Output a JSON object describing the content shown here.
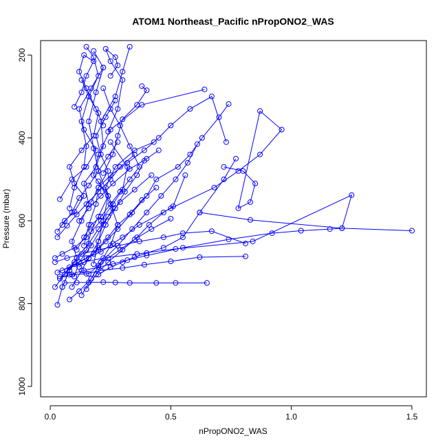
{
  "chart_data": {
    "type": "line",
    "title": "ATOM1 Northeast_Pacific nPropONO2_WAS",
    "xlabel": "nPropONO2_WAS",
    "ylabel": "Pressure (mbar)",
    "xlim": [
      -0.04,
      1.56
    ],
    "ylim": [
      1025,
      165
    ],
    "y_reversed": true,
    "x_ticks": [
      0.0,
      0.5,
      1.0,
      1.5
    ],
    "x_tick_labels": [
      "0.0",
      "0.5",
      "1.0",
      "1.5"
    ],
    "y_ticks": [
      200,
      400,
      600,
      800,
      1000
    ],
    "y_tick_labels": [
      "200",
      "400",
      "600",
      "800",
      "1000"
    ],
    "grid": false,
    "legend": "none",
    "marker": "open-circle",
    "color": "#0000ff",
    "series": [
      {
        "x": [
          0.03,
          0.05,
          0.08,
          0.11,
          0.09,
          0.13,
          0.16,
          0.14,
          0.19,
          0.22,
          0.21,
          0.27,
          0.3,
          0.33
        ],
        "y": [
          803,
          760,
          720,
          690,
          650,
          600,
          560,
          510,
          470,
          420,
          360,
          300,
          240,
          180
        ]
      },
      {
        "x": [
          0.02,
          0.06,
          0.1,
          0.15,
          0.17,
          0.2,
          0.24,
          0.18,
          0.2,
          0.25,
          0.38,
          0.64
        ],
        "y": [
          760,
          730,
          700,
          670,
          625,
          590,
          540,
          490,
          440,
          380,
          320,
          283
        ]
      },
      {
        "x": [
          0.04,
          0.07,
          0.12,
          0.18,
          0.23,
          0.28,
          0.34,
          0.4,
          0.44,
          0.53,
          0.58,
          0.63,
          0.7,
          0.74
        ],
        "y": [
          740,
          720,
          700,
          680,
          650,
          620,
          580,
          540,
          500,
          470,
          440,
          400,
          350,
          318
        ]
      },
      {
        "x": [
          0.05,
          0.1,
          0.15,
          0.21,
          0.26,
          0.3,
          0.37,
          0.5,
          0.68,
          0.78,
          0.87,
          0.96,
          0.87,
          0.78,
          0.83,
          0.85,
          0.8,
          0.72
        ],
        "y": [
          720,
          705,
          690,
          675,
          655,
          640,
          610,
          570,
          520,
          480,
          440,
          380,
          335,
          570,
          555,
          510,
          480,
          470
        ]
      },
      {
        "x": [
          0.08,
          0.14,
          0.2,
          0.26,
          0.32,
          0.4,
          0.55,
          0.74,
          0.92,
          1.04,
          1.16,
          1.21,
          1.5
        ],
        "y": [
          730,
          720,
          712,
          704,
          695,
          684,
          665,
          645,
          630,
          624,
          620,
          618,
          624
        ]
      },
      {
        "x": [
          0.03,
          0.08,
          0.14,
          0.22,
          0.36,
          0.52,
          0.84,
          1.25,
          1.21,
          0.83,
          0.62
        ],
        "y": [
          725,
          712,
          700,
          690,
          680,
          668,
          650,
          538,
          618,
          598,
          580
        ]
      },
      {
        "x": [
          0.02,
          0.07,
          0.13,
          0.2,
          0.28,
          0.37,
          0.47,
          0.55,
          0.67,
          0.81
        ],
        "y": [
          700,
          690,
          680,
          670,
          660,
          650,
          640,
          630,
          625,
          655
        ]
      },
      {
        "x": [
          0.04,
          0.09,
          0.15,
          0.21,
          0.3,
          0.39,
          0.5,
          0.62,
          0.81
        ],
        "y": [
          735,
          730,
          728,
          720,
          714,
          706,
          698,
          688,
          686
        ]
      },
      {
        "x": [
          0.06,
          0.11,
          0.16,
          0.22,
          0.27,
          0.33,
          0.44,
          0.52,
          0.65
        ],
        "y": [
          750,
          749,
          749,
          748,
          749,
          750,
          750,
          750,
          750
        ]
      },
      {
        "x": [
          0.03,
          0.06,
          0.1,
          0.14,
          0.1,
          0.08,
          0.13,
          0.18,
          0.2,
          0.16,
          0.13
        ],
        "y": [
          626,
          600,
          578,
          540,
          510,
          470,
          430,
          395,
          340,
          300,
          260
        ]
      },
      {
        "x": [
          0.04,
          0.09,
          0.15,
          0.19,
          0.14,
          0.12,
          0.17,
          0.22,
          0.18
        ],
        "y": [
          548,
          500,
          470,
          430,
          380,
          330,
          280,
          230,
          190
        ]
      },
      {
        "x": [
          0.08,
          0.12,
          0.17,
          0.21,
          0.25,
          0.28,
          0.25,
          0.2
        ],
        "y": [
          790,
          770,
          740,
          700,
          660,
          610,
          560,
          505
        ]
      },
      {
        "x": [
          0.13,
          0.17,
          0.21,
          0.28,
          0.34,
          0.4,
          0.46,
          0.52,
          0.57,
          0.61
        ],
        "y": [
          780,
          740,
          700,
          660,
          620,
          580,
          540,
          500,
          460,
          415
        ]
      },
      {
        "x": [
          0.05,
          0.08,
          0.11,
          0.16,
          0.2,
          0.24,
          0.29,
          0.35,
          0.42
        ],
        "y": [
          760,
          720,
          690,
          655,
          620,
          590,
          555,
          525,
          490
        ]
      },
      {
        "x": [
          0.1,
          0.12,
          0.17,
          0.22,
          0.26,
          0.23,
          0.27,
          0.35,
          0.43
        ],
        "y": [
          735,
          700,
          660,
          610,
          570,
          520,
          470,
          430,
          410
        ]
      },
      {
        "x": [
          0.15,
          0.19,
          0.24,
          0.3,
          0.36,
          0.41,
          0.47,
          0.51,
          0.56
        ],
        "y": [
          765,
          730,
          700,
          670,
          640,
          610,
          580,
          565,
          490
        ]
      },
      {
        "x": [
          0.02,
          0.05,
          0.1,
          0.15,
          0.21,
          0.26,
          0.3,
          0.32,
          0.25
        ],
        "y": [
          690,
          680,
          665,
          640,
          600,
          560,
          525,
          470,
          410
        ]
      },
      {
        "x": [
          0.12,
          0.16,
          0.2,
          0.24,
          0.28,
          0.33,
          0.38,
          0.44
        ],
        "y": [
          712,
          690,
          665,
          640,
          610,
          585,
          550,
          520
        ]
      },
      {
        "x": [
          0.03,
          0.07,
          0.11,
          0.15,
          0.2,
          0.25,
          0.29,
          0.35
        ],
        "y": [
          640,
          612,
          585,
          560,
          530,
          500,
          470,
          440
        ]
      },
      {
        "x": [
          0.09,
          0.13,
          0.16,
          0.2,
          0.23,
          0.27,
          0.31,
          0.36,
          0.39
        ],
        "y": [
          760,
          720,
          690,
          650,
          610,
          570,
          530,
          490,
          455
        ]
      },
      {
        "x": [
          0.14,
          0.16,
          0.19,
          0.2,
          0.24,
          0.21,
          0.19,
          0.23,
          0.27
        ],
        "y": [
          660,
          610,
          560,
          520,
          480,
          440,
          395,
          350,
          310
        ]
      },
      {
        "x": [
          0.18,
          0.2,
          0.22,
          0.24,
          0.2,
          0.18,
          0.16,
          0.19,
          0.22
        ],
        "y": [
          705,
          650,
          600,
          540,
          480,
          425,
          360,
          290,
          230
        ]
      },
      {
        "x": [
          0.08,
          0.1,
          0.14,
          0.15,
          0.13,
          0.16,
          0.2,
          0.18,
          0.15
        ],
        "y": [
          570,
          520,
          470,
          420,
          360,
          300,
          250,
          205,
          180
        ]
      },
      {
        "x": [
          0.11,
          0.14,
          0.17,
          0.21,
          0.25,
          0.29,
          0.33,
          0.37,
          0.33,
          0.29,
          0.25,
          0.22
        ],
        "y": [
          670,
          640,
          610,
          590,
          560,
          530,
          500,
          470,
          420,
          370,
          330,
          280
        ]
      },
      {
        "x": [
          0.16,
          0.2,
          0.24,
          0.29,
          0.35,
          0.42,
          0.5
        ],
        "y": [
          728,
          708,
          690,
          670,
          645,
          620,
          595
        ]
      },
      {
        "x": [
          0.2,
          0.25,
          0.3,
          0.35,
          0.4,
          0.47,
          0.55,
          0.62,
          0.72,
          0.77
        ],
        "y": [
          730,
          712,
          700,
          688,
          678,
          665,
          640,
          580,
          500,
          450
        ]
      },
      {
        "x": [
          0.12,
          0.16,
          0.21,
          0.26,
          0.33,
          0.4,
          0.45
        ],
        "y": [
          600,
          570,
          540,
          510,
          475,
          450,
          430
        ]
      },
      {
        "x": [
          0.22,
          0.26,
          0.28,
          0.3,
          0.36,
          0.4,
          0.38
        ],
        "y": [
          485,
          440,
          395,
          355,
          320,
          285,
          275
        ]
      },
      {
        "x": [
          0.17,
          0.2,
          0.25,
          0.32,
          0.39,
          0.45,
          0.5,
          0.58,
          0.67,
          0.73
        ],
        "y": [
          555,
          520,
          490,
          460,
          430,
          400,
          370,
          330,
          300,
          410
        ]
      },
      {
        "x": [
          0.05,
          0.09,
          0.12,
          0.16,
          0.2,
          0.24,
          0.28
        ],
        "y": [
          610,
          580,
          545,
          515,
          480,
          445,
          410
        ]
      },
      {
        "x": [
          0.25,
          0.28,
          0.27,
          0.23,
          0.25,
          0.3,
          0.28,
          0.24
        ],
        "y": [
          250,
          225,
          205,
          185,
          215,
          260,
          330,
          385
        ]
      },
      {
        "x": [
          0.1,
          0.13,
          0.15,
          0.18,
          0.14,
          0.12,
          0.15,
          0.19,
          0.22
        ],
        "y": [
          325,
          290,
          250,
          215,
          200,
          240,
          280,
          330,
          370
        ]
      }
    ]
  }
}
